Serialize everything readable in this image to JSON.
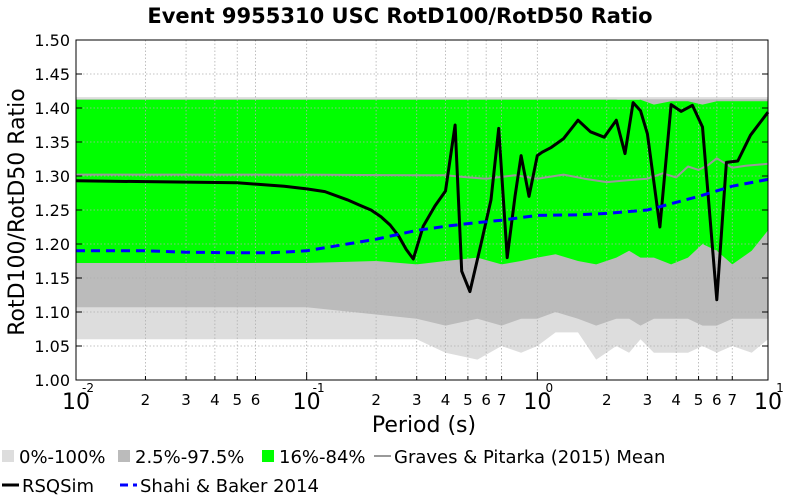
{
  "chart_data": {
    "type": "line",
    "title": "Event 9955310 USC RotD100/RotD50 Ratio",
    "xlabel": "Period (s)",
    "ylabel": "RotD100/RotD50 Ratio",
    "xscale": "log",
    "xlim": [
      0.01,
      10
    ],
    "ylim": [
      1.0,
      1.5
    ],
    "grid": true,
    "legend_placement": "bottom",
    "x_major_ticks": [
      {
        "value": 0.01,
        "base": "10",
        "exp": "-2"
      },
      {
        "value": 0.1,
        "base": "10",
        "exp": "-1"
      },
      {
        "value": 1,
        "base": "10",
        "exp": "0"
      },
      {
        "value": 10,
        "base": "10",
        "exp": "1"
      }
    ],
    "x_minor_ticks": [
      {
        "value": 0.02,
        "label": "2"
      },
      {
        "value": 0.03,
        "label": "3"
      },
      {
        "value": 0.04,
        "label": "4"
      },
      {
        "value": 0.05,
        "label": "5"
      },
      {
        "value": 0.06,
        "label": "6"
      },
      {
        "value": 0.2,
        "label": "2"
      },
      {
        "value": 0.3,
        "label": "3"
      },
      {
        "value": 0.4,
        "label": "4"
      },
      {
        "value": 0.5,
        "label": "5"
      },
      {
        "value": 0.6,
        "label": "6"
      },
      {
        "value": 0.7,
        "label": "7"
      },
      {
        "value": 2,
        "label": "2"
      },
      {
        "value": 3,
        "label": "3"
      },
      {
        "value": 4,
        "label": "4"
      },
      {
        "value": 5,
        "label": "5"
      },
      {
        "value": 6,
        "label": "6"
      },
      {
        "value": 7,
        "label": "7"
      }
    ],
    "y_ticks": [
      "1.00",
      "1.05",
      "1.10",
      "1.15",
      "1.20",
      "1.25",
      "1.30",
      "1.35",
      "1.40",
      "1.45",
      "1.50"
    ],
    "bands": [
      {
        "name": "0%-100%",
        "color": "#dddddd",
        "x": [
          0.01,
          0.1,
          0.3,
          0.4,
          0.55,
          0.7,
          0.85,
          1.0,
          1.2,
          1.5,
          1.8,
          2.2,
          2.5,
          2.8,
          3.2,
          3.8,
          4.5,
          5.2,
          6.0,
          7.0,
          8.5,
          10
        ],
        "lower": [
          1.06,
          1.06,
          1.06,
          1.04,
          1.03,
          1.05,
          1.04,
          1.05,
          1.07,
          1.07,
          1.03,
          1.05,
          1.04,
          1.06,
          1.04,
          1.04,
          1.04,
          1.05,
          1.04,
          1.05,
          1.04,
          1.06
        ],
        "upper": [
          1.416,
          1.416,
          1.416,
          1.416,
          1.416,
          1.416,
          1.416,
          1.416,
          1.416,
          1.416,
          1.416,
          1.416,
          1.416,
          1.416,
          1.416,
          1.416,
          1.416,
          1.416,
          1.416,
          1.416,
          1.416,
          1.416
        ]
      },
      {
        "name": "2.5%-97.5%",
        "color": "#bbbbbb",
        "x": [
          0.01,
          0.1,
          0.3,
          0.4,
          0.55,
          0.7,
          0.85,
          1.0,
          1.2,
          1.5,
          1.8,
          2.2,
          2.5,
          2.8,
          3.2,
          3.8,
          4.5,
          5.2,
          6.0,
          7.0,
          8.5,
          10
        ],
        "lower": [
          1.107,
          1.107,
          1.09,
          1.08,
          1.09,
          1.08,
          1.09,
          1.09,
          1.1,
          1.09,
          1.08,
          1.09,
          1.09,
          1.08,
          1.09,
          1.09,
          1.09,
          1.08,
          1.08,
          1.09,
          1.09,
          1.09
        ],
        "upper": [
          1.413,
          1.413,
          1.413,
          1.413,
          1.413,
          1.413,
          1.413,
          1.413,
          1.413,
          1.413,
          1.413,
          1.413,
          1.404,
          1.413,
          1.413,
          1.413,
          1.413,
          1.413,
          1.413,
          1.413,
          1.413,
          1.413
        ]
      },
      {
        "name": "16%-84%",
        "color": "#00ff00",
        "x": [
          0.01,
          0.1,
          0.2,
          0.3,
          0.4,
          0.55,
          0.7,
          0.85,
          1.0,
          1.2,
          1.5,
          1.8,
          2.2,
          2.5,
          2.8,
          3.2,
          3.8,
          4.5,
          5.2,
          6.0,
          7.0,
          8.5,
          10
        ],
        "lower": [
          1.172,
          1.172,
          1.175,
          1.17,
          1.175,
          1.18,
          1.17,
          1.175,
          1.18,
          1.185,
          1.175,
          1.17,
          1.18,
          1.19,
          1.18,
          1.18,
          1.17,
          1.18,
          1.2,
          1.19,
          1.17,
          1.19,
          1.22
        ],
        "upper": [
          1.412,
          1.412,
          1.412,
          1.412,
          1.412,
          1.412,
          1.412,
          1.412,
          1.412,
          1.412,
          1.412,
          1.412,
          1.412,
          1.412,
          1.412,
          1.405,
          1.41,
          1.41,
          1.405,
          1.41,
          1.41,
          1.41,
          1.41
        ]
      }
    ],
    "series": [
      {
        "name": "Graves & Pitarka (2015) Mean",
        "color": "#999999",
        "style": "solid",
        "x": [
          0.01,
          0.1,
          0.3,
          0.4,
          0.5,
          0.6,
          0.8,
          1.0,
          1.3,
          1.6,
          2.0,
          2.5,
          3.0,
          3.5,
          4.0,
          4.5,
          5.0,
          5.5,
          6.0,
          7.0,
          8.0,
          10
        ],
        "y": [
          1.302,
          1.302,
          1.301,
          1.301,
          1.298,
          1.296,
          1.301,
          1.296,
          1.302,
          1.296,
          1.291,
          1.294,
          1.296,
          1.304,
          1.298,
          1.314,
          1.309,
          1.316,
          1.326,
          1.312,
          1.315,
          1.318
        ]
      },
      {
        "name": "RSQSim",
        "color": "#000000",
        "style": "solid",
        "x": [
          0.01,
          0.05,
          0.08,
          0.1,
          0.12,
          0.15,
          0.17,
          0.19,
          0.21,
          0.23,
          0.25,
          0.27,
          0.29,
          0.32,
          0.36,
          0.4,
          0.44,
          0.47,
          0.51,
          0.57,
          0.63,
          0.68,
          0.74,
          0.8,
          0.85,
          0.92,
          1.0,
          1.05,
          1.15,
          1.3,
          1.5,
          1.7,
          1.95,
          2.2,
          2.4,
          2.6,
          2.8,
          3.0,
          3.4,
          3.8,
          4.2,
          4.7,
          5.2,
          6.0,
          6.6,
          7.4,
          8.4,
          10.0
        ],
        "y": [
          1.293,
          1.29,
          1.285,
          1.281,
          1.277,
          1.265,
          1.257,
          1.25,
          1.24,
          1.228,
          1.212,
          1.192,
          1.178,
          1.226,
          1.256,
          1.278,
          1.375,
          1.16,
          1.13,
          1.2,
          1.265,
          1.37,
          1.18,
          1.27,
          1.33,
          1.27,
          1.33,
          1.335,
          1.342,
          1.355,
          1.382,
          1.365,
          1.357,
          1.382,
          1.333,
          1.408,
          1.396,
          1.362,
          1.225,
          1.405,
          1.395,
          1.404,
          1.372,
          1.118,
          1.32,
          1.322,
          1.36,
          1.394
        ]
      },
      {
        "name": "Shahi & Baker 2014",
        "color": "#0000ff",
        "style": "dashed",
        "x": [
          0.01,
          0.02,
          0.03,
          0.05,
          0.07,
          0.1,
          0.15,
          0.2,
          0.3,
          0.4,
          0.5,
          0.7,
          1.0,
          1.5,
          2.0,
          3.0,
          5.0,
          7.0,
          10
        ],
        "y": [
          1.19,
          1.19,
          1.188,
          1.187,
          1.187,
          1.19,
          1.2,
          1.207,
          1.22,
          1.226,
          1.23,
          1.235,
          1.242,
          1.243,
          1.245,
          1.25,
          1.27,
          1.285,
          1.295
        ]
      }
    ],
    "legend": [
      {
        "label": "0%-100%",
        "kind": "patch",
        "color": "#dddddd"
      },
      {
        "label": "2.5%-97.5%",
        "kind": "patch",
        "color": "#bbbbbb"
      },
      {
        "label": "16%-84%",
        "kind": "patch",
        "color": "#00ff00"
      },
      {
        "label": "Graves & Pitarka (2015) Mean",
        "kind": "line",
        "color": "#999999",
        "style": "solid"
      },
      {
        "label": "RSQSim",
        "kind": "line",
        "color": "#000000",
        "style": "solid"
      },
      {
        "label": "Shahi & Baker 2014",
        "kind": "line",
        "color": "#0000ff",
        "style": "dashed"
      }
    ]
  }
}
